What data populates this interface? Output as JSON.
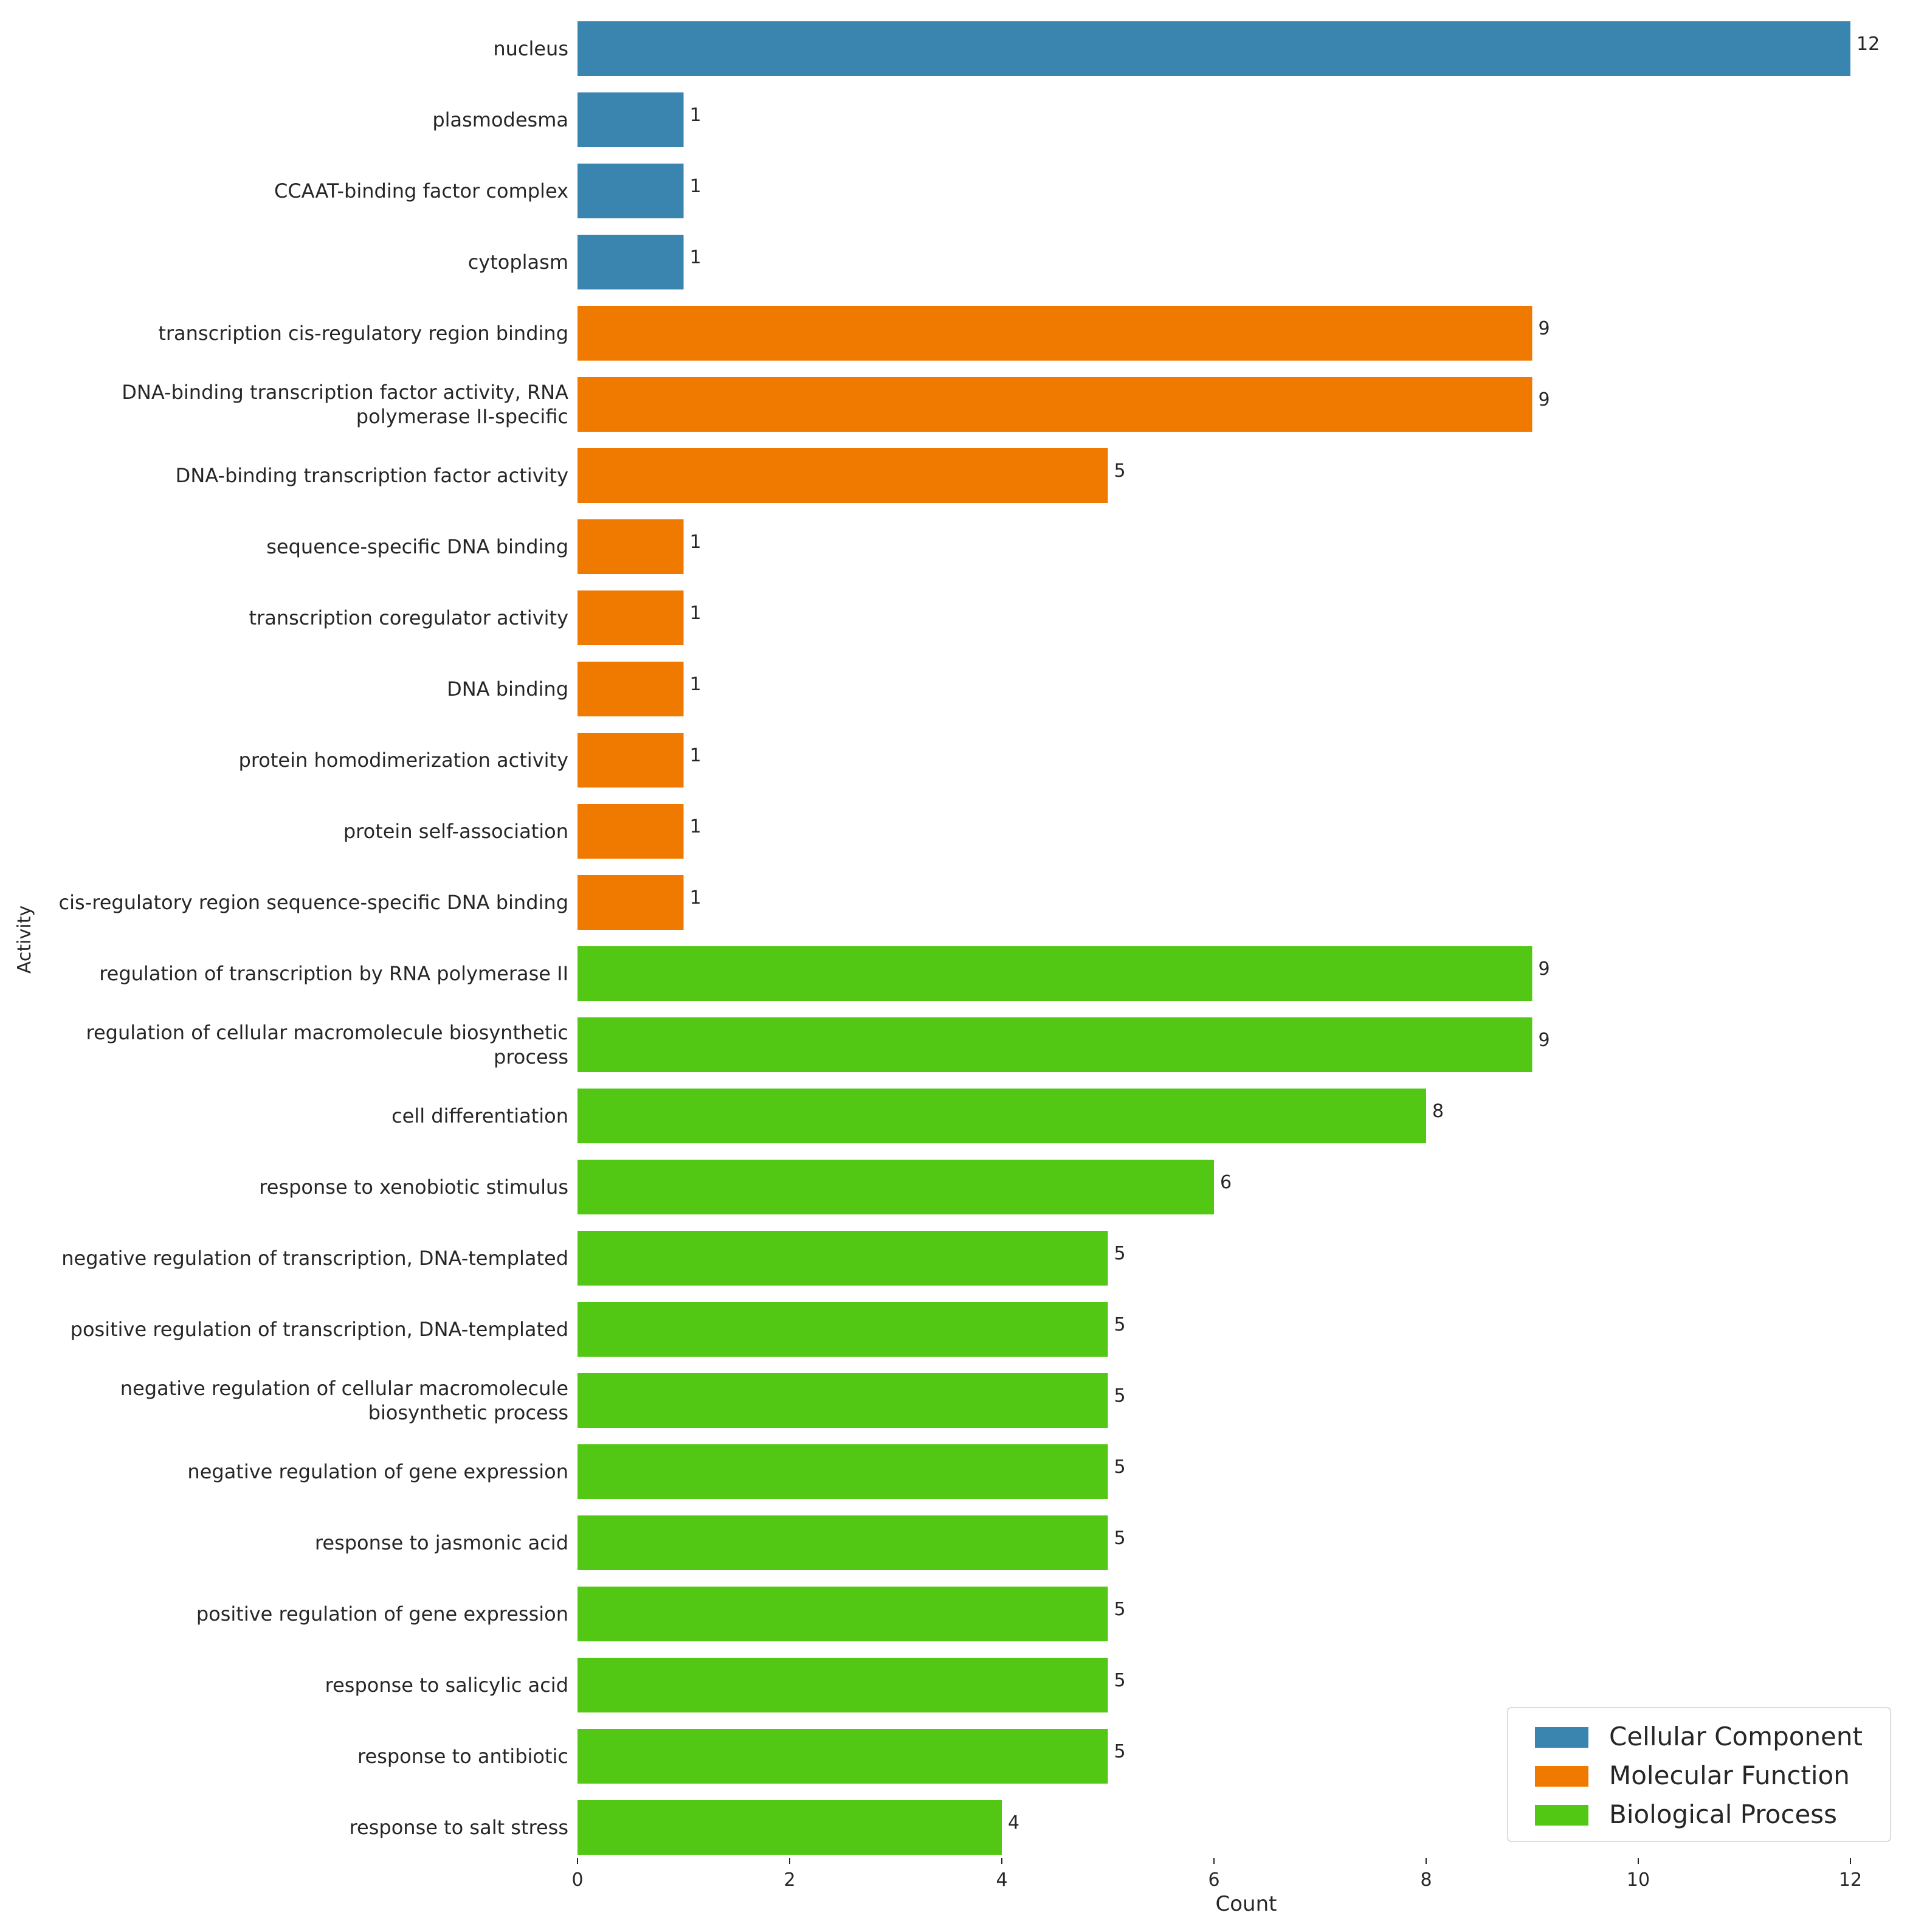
{
  "chart_data": {
    "type": "bar",
    "orientation": "horizontal",
    "xlabel": "Count",
    "ylabel": "Activity",
    "xlim": [
      0,
      12.6
    ],
    "xticks": [
      0,
      2,
      4,
      6,
      8,
      10,
      12
    ],
    "grid": false,
    "legend_position": "bottom-right",
    "colors": {
      "Cellular Component": "#3a85b0",
      "Molecular Function": "#f07a00",
      "Biological Process": "#52c814"
    },
    "series": [
      {
        "name": "Cellular Component"
      },
      {
        "name": "Molecular Function"
      },
      {
        "name": "Biological Process"
      }
    ],
    "bars": [
      {
        "label": "nucleus",
        "value": 12,
        "category": "Cellular Component"
      },
      {
        "label": "plasmodesma",
        "value": 1,
        "category": "Cellular Component"
      },
      {
        "label": "CCAAT-binding factor complex",
        "value": 1,
        "category": "Cellular Component"
      },
      {
        "label": "cytoplasm",
        "value": 1,
        "category": "Cellular Component"
      },
      {
        "label": "transcription cis-regulatory region binding",
        "value": 9,
        "category": "Molecular Function"
      },
      {
        "label": "DNA-binding transcription factor activity, RNA polymerase II-specific",
        "value": 9,
        "category": "Molecular Function"
      },
      {
        "label": "DNA-binding transcription factor activity",
        "value": 5,
        "category": "Molecular Function"
      },
      {
        "label": "sequence-specific DNA binding",
        "value": 1,
        "category": "Molecular Function"
      },
      {
        "label": "transcription coregulator activity",
        "value": 1,
        "category": "Molecular Function"
      },
      {
        "label": "DNA binding",
        "value": 1,
        "category": "Molecular Function"
      },
      {
        "label": "protein homodimerization activity",
        "value": 1,
        "category": "Molecular Function"
      },
      {
        "label": "protein self-association",
        "value": 1,
        "category": "Molecular Function"
      },
      {
        "label": "cis-regulatory region sequence-specific DNA binding",
        "value": 1,
        "category": "Molecular Function"
      },
      {
        "label": "regulation of transcription by RNA polymerase II",
        "value": 9,
        "category": "Biological Process"
      },
      {
        "label": "regulation of cellular macromolecule biosynthetic process",
        "value": 9,
        "category": "Biological Process"
      },
      {
        "label": "cell differentiation",
        "value": 8,
        "category": "Biological Process"
      },
      {
        "label": "response to xenobiotic stimulus",
        "value": 6,
        "category": "Biological Process"
      },
      {
        "label": "negative regulation of transcription, DNA-templated",
        "value": 5,
        "category": "Biological Process"
      },
      {
        "label": "positive regulation of transcription, DNA-templated",
        "value": 5,
        "category": "Biological Process"
      },
      {
        "label": "negative regulation of cellular macromolecule biosynthetic process",
        "value": 5,
        "category": "Biological Process"
      },
      {
        "label": "negative regulation of gene expression",
        "value": 5,
        "category": "Biological Process"
      },
      {
        "label": "response to jasmonic acid",
        "value": 5,
        "category": "Biological Process"
      },
      {
        "label": "positive regulation of gene expression",
        "value": 5,
        "category": "Biological Process"
      },
      {
        "label": "response to salicylic acid",
        "value": 5,
        "category": "Biological Process"
      },
      {
        "label": "response to antibiotic",
        "value": 5,
        "category": "Biological Process"
      },
      {
        "label": "response to salt stress",
        "value": 4,
        "category": "Biological Process"
      }
    ]
  }
}
